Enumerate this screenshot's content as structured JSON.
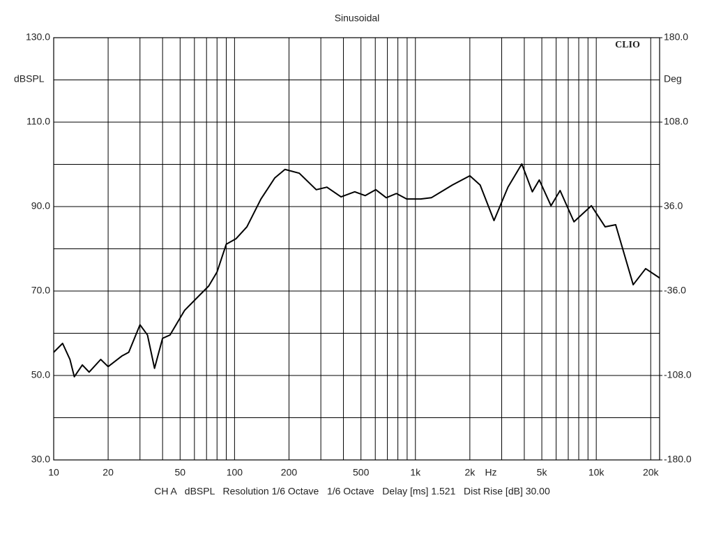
{
  "chart_data": {
    "type": "line",
    "title": "Sinusoidal",
    "ylabel": "dBSPL",
    "y2label": "Deg",
    "xunit": "Hz",
    "brand": "CLIO",
    "footer": "CH A   dBSPL   Resolution 1/6 Octave   1/6 Octave   Delay [ms] 1.521   Dist Rise [dB] 30.00",
    "log_x": true,
    "grid": true,
    "xlim": [
      10,
      22400
    ],
    "xticks": [
      10,
      20,
      50,
      100,
      200,
      500,
      {
        "value": 1000,
        "label": "1k"
      },
      {
        "value": 2000,
        "label": "2k"
      },
      {
        "value": 5000,
        "label": "5k"
      },
      {
        "value": 10000,
        "label": "10k"
      },
      {
        "value": 20000,
        "label": "20k"
      }
    ],
    "xminor": [
      30,
      40,
      60,
      70,
      80,
      90,
      300,
      400,
      600,
      700,
      800,
      900,
      3000,
      4000,
      6000,
      7000,
      8000,
      9000
    ],
    "ylim": [
      30,
      130
    ],
    "yticks": [
      {
        "value": 30,
        "label": "30.0"
      },
      {
        "value": 50,
        "label": "50.0"
      },
      {
        "value": 70,
        "label": "70.0"
      },
      {
        "value": 90,
        "label": "90.0"
      },
      {
        "value": 110,
        "label": "110.0"
      },
      {
        "value": 130,
        "label": "130.0"
      }
    ],
    "yminor": [
      40,
      60,
      80,
      100,
      120
    ],
    "y2lim": [
      -180,
      180
    ],
    "y2ticks": [
      {
        "value": 180,
        "label": "180.0"
      },
      {
        "value": 108,
        "label": "108.0"
      },
      {
        "value": 36,
        "label": "36.0"
      },
      {
        "value": -36,
        "label": "-36.0"
      },
      {
        "value": -108,
        "label": "-108.0"
      },
      {
        "value": -180,
        "label": "-180.0"
      }
    ],
    "x": [
      10,
      11.2,
      12.3,
      13,
      14.4,
      15.7,
      18.2,
      20,
      23.8,
      26,
      30,
      33,
      36.1,
      40,
      44,
      52.9,
      63,
      72,
      80,
      90,
      102,
      117,
      140,
      167,
      190,
      228,
      283,
      324,
      388,
      462,
      528,
      604,
      690,
      785,
      895,
      1070,
      1225,
      1600,
      2000,
      2280,
      2720,
      3250,
      3875,
      4430,
      4840,
      5620,
      6310,
      7530,
      9400,
      11200,
      12800,
      16000,
      18750,
      22400
    ],
    "series": [
      {
        "name": "dBSPL",
        "color": "#000000",
        "values": [
          55.5,
          57.6,
          53.8,
          49.7,
          52.5,
          50.8,
          53.8,
          52.1,
          54.6,
          55.5,
          62,
          59.6,
          51.7,
          58.8,
          59.6,
          65.4,
          68.7,
          71.2,
          74.5,
          81.1,
          82.4,
          85.2,
          91.8,
          96.8,
          98.8,
          97.9,
          94,
          94.6,
          92.3,
          93.5,
          92.6,
          94,
          92.1,
          93.1,
          91.8,
          91.8,
          92.1,
          95.1,
          97.3,
          95.1,
          86.7,
          94.6,
          100.1,
          93.5,
          96.3,
          90.2,
          93.8,
          86.4,
          90.2,
          85.2,
          85.7,
          71.5,
          75.3,
          73.1
        ]
      }
    ]
  }
}
